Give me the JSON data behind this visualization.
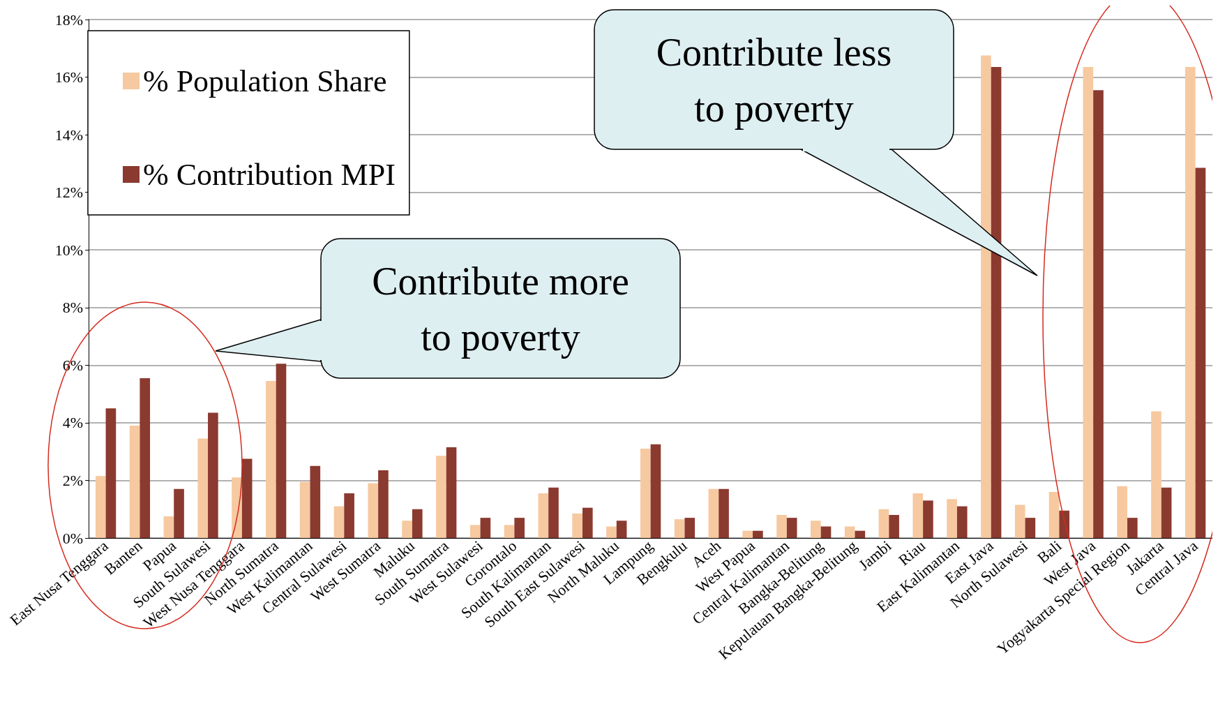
{
  "chart_data": {
    "type": "bar",
    "categories": [
      "East Nusa Tenggara",
      "Banten",
      "Papua",
      "South Sulawesi",
      "West Nusa Tenggara",
      "North Sumatra",
      "West Kalimantan",
      "Central Sulawesi",
      "West Sumatra",
      "Maluku",
      "South Sumatra",
      "West Sulawesi",
      "Gorontalo",
      "South Kalimantan",
      "South East Sulawesi",
      "North Maluku",
      "Lampung",
      "Bengkulu",
      "Aceh",
      "West Papua",
      "Central Kalimantan",
      "Bangka-Belitung",
      "Kepulauan Bangka-Belitung",
      "Jambi",
      "Riau",
      "East Kalimantan",
      "East Java",
      "North Sulawesi",
      "Bali",
      "West Java",
      "Yogyakarta Special Region",
      "Jakarta",
      "Central Java"
    ],
    "series": [
      {
        "name": "% Population Share",
        "color": "#f6c9a0",
        "values": [
          2.15,
          3.9,
          0.75,
          3.45,
          2.1,
          5.45,
          1.95,
          1.1,
          1.9,
          0.6,
          2.85,
          0.45,
          0.45,
          1.55,
          0.85,
          0.4,
          3.1,
          0.65,
          1.7,
          0.25,
          0.8,
          0.6,
          0.4,
          1.0,
          1.55,
          1.35,
          16.75,
          1.15,
          1.6,
          16.35,
          1.8,
          4.4,
          16.35
        ]
      },
      {
        "name": "% Contribution MPI",
        "color": "#8b3a30",
        "values": [
          4.5,
          5.55,
          1.7,
          4.35,
          2.75,
          6.05,
          2.5,
          1.55,
          2.35,
          1.0,
          3.15,
          0.7,
          0.7,
          1.75,
          1.05,
          0.6,
          3.25,
          0.7,
          1.7,
          0.25,
          0.7,
          0.4,
          0.25,
          0.8,
          1.3,
          1.1,
          16.35,
          0.7,
          0.95,
          15.55,
          0.7,
          1.75,
          12.85
        ]
      }
    ],
    "ylim": [
      0,
      18
    ],
    "yticks": [
      {
        "value": 0,
        "label": "0%"
      },
      {
        "value": 2,
        "label": "2%"
      },
      {
        "value": 4,
        "label": "4%"
      },
      {
        "value": 6,
        "label": "6%"
      },
      {
        "value": 8,
        "label": "8%"
      },
      {
        "value": 10,
        "label": "10%"
      },
      {
        "value": 12,
        "label": "12%"
      },
      {
        "value": 14,
        "label": "14%"
      },
      {
        "value": 16,
        "label": "16%"
      },
      {
        "value": 18,
        "label": "18%"
      }
    ],
    "grid": "y",
    "legend": "top left",
    "annotations": [
      "Contribute more\nto poverty",
      "Contribute less\nto poverty"
    ]
  }
}
